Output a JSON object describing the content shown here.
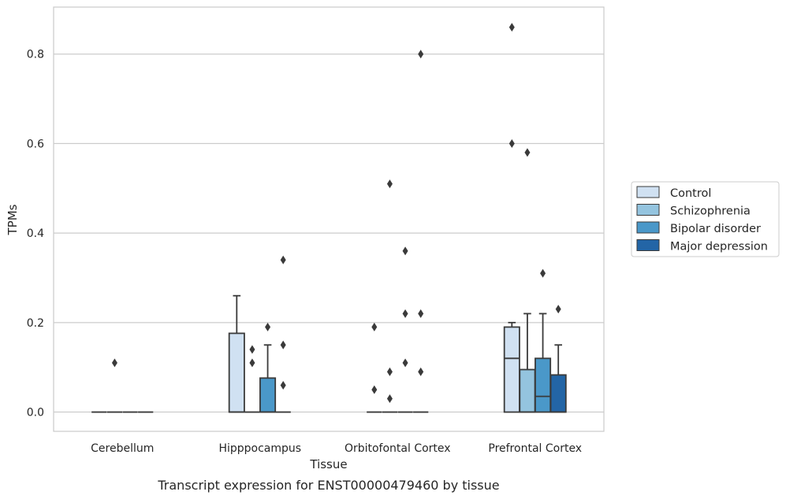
{
  "chart_data": {
    "type": "box",
    "caption": "Transcript expression for ENST00000479460 by tissue",
    "xlabel": "Tissue",
    "ylabel": "TPMs",
    "ylim": [
      -0.043,
      0.905
    ],
    "yticks": [
      "0.0",
      "0.2",
      "0.4",
      "0.6",
      "0.8"
    ],
    "ytick_values": [
      0.0,
      0.2,
      0.4,
      0.6,
      0.8
    ],
    "categories": [
      "Cerebellum",
      "Hipppocampus",
      "Orbitofontal Cortex",
      "Prefrontal Cortex"
    ],
    "grid": "horizontal",
    "legend_position": "right",
    "series": [
      {
        "name": "Control",
        "color": "#d0e1f2",
        "boxes": [
          {
            "q1": 0.0,
            "median": 0.0,
            "q3": 0.0,
            "whislo": 0.0,
            "whishi": 0.0,
            "fliers": []
          },
          {
            "q1": 0.0,
            "median": 0.0,
            "q3": 0.176,
            "whislo": 0.0,
            "whishi": 0.26,
            "fliers": []
          },
          {
            "q1": 0.0,
            "median": 0.0,
            "q3": 0.0,
            "whislo": 0.0,
            "whishi": 0.0,
            "fliers": [
              0.19,
              0.05
            ]
          },
          {
            "q1": 0.0,
            "median": 0.12,
            "q3": 0.19,
            "whislo": 0.0,
            "whishi": 0.2,
            "fliers": [
              0.86,
              0.6
            ]
          }
        ]
      },
      {
        "name": "Schizophrenia",
        "color": "#94c4df",
        "boxes": [
          {
            "q1": 0.0,
            "median": 0.0,
            "q3": 0.0,
            "whislo": 0.0,
            "whishi": 0.0,
            "fliers": [
              0.11
            ]
          },
          {
            "q1": 0.0,
            "median": 0.0,
            "q3": 0.0,
            "whislo": 0.0,
            "whishi": 0.0,
            "fliers": [
              0.14,
              0.11
            ]
          },
          {
            "q1": 0.0,
            "median": 0.0,
            "q3": 0.0,
            "whislo": 0.0,
            "whishi": 0.0,
            "fliers": [
              0.51,
              0.09,
              0.03
            ]
          },
          {
            "q1": 0.0,
            "median": 0.0,
            "q3": 0.095,
            "whislo": 0.0,
            "whishi": 0.22,
            "fliers": [
              0.58
            ]
          }
        ]
      },
      {
        "name": "Bipolar disorder",
        "color": "#4a98c9",
        "boxes": [
          {
            "q1": 0.0,
            "median": 0.0,
            "q3": 0.0,
            "whislo": 0.0,
            "whishi": 0.0,
            "fliers": []
          },
          {
            "q1": 0.0,
            "median": 0.0,
            "q3": 0.076,
            "whislo": 0.0,
            "whishi": 0.15,
            "fliers": [
              0.19
            ]
          },
          {
            "q1": 0.0,
            "median": 0.0,
            "q3": 0.0,
            "whislo": 0.0,
            "whishi": 0.0,
            "fliers": [
              0.36,
              0.22,
              0.11
            ]
          },
          {
            "q1": 0.0,
            "median": 0.035,
            "q3": 0.12,
            "whislo": 0.0,
            "whishi": 0.22,
            "fliers": [
              0.31
            ]
          }
        ]
      },
      {
        "name": "Major depression",
        "color": "#2365a6",
        "boxes": [
          {
            "q1": 0.0,
            "median": 0.0,
            "q3": 0.0,
            "whislo": 0.0,
            "whishi": 0.0,
            "fliers": []
          },
          {
            "q1": 0.0,
            "median": 0.0,
            "q3": 0.0,
            "whislo": 0.0,
            "whishi": 0.0,
            "fliers": [
              0.34,
              0.15,
              0.06
            ]
          },
          {
            "q1": 0.0,
            "median": 0.0,
            "q3": 0.0,
            "whislo": 0.0,
            "whishi": 0.0,
            "fliers": [
              0.8,
              0.22,
              0.09
            ]
          },
          {
            "q1": 0.0,
            "median": 0.0,
            "q3": 0.083,
            "whislo": 0.0,
            "whishi": 0.15,
            "fliers": [
              0.23
            ]
          }
        ]
      }
    ]
  }
}
